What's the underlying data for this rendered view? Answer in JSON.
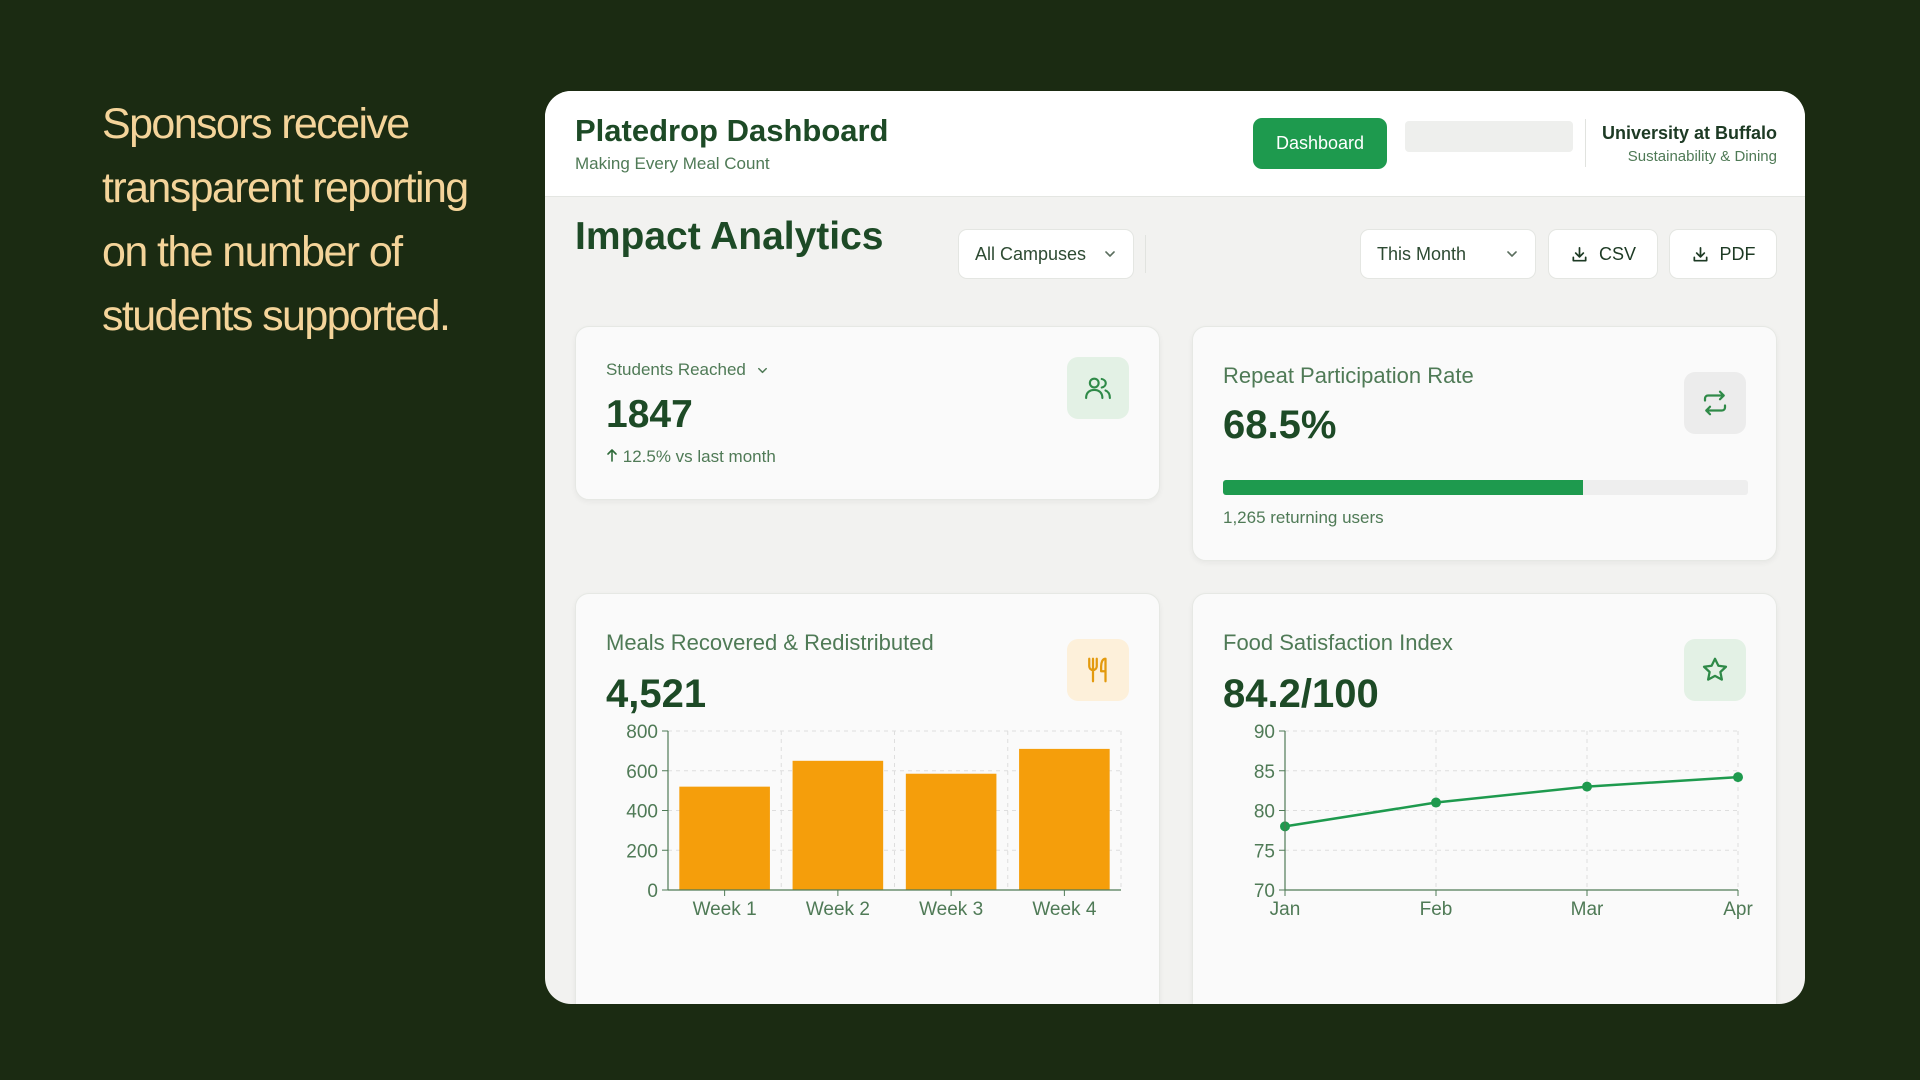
{
  "tagline": "Sponsors receive transparent reporting on the number of students supported.",
  "header": {
    "title": "Platedrop Dashboard",
    "subtitle": "Making Every Meal Count",
    "nav_button": "Dashboard",
    "org_name": "University at Buffalo",
    "org_sub": "Sustainability & Dining"
  },
  "page_title": "Impact Analytics",
  "filters": {
    "campus": "All Campuses",
    "period": "This Month",
    "csv": "CSV",
    "pdf": "PDF"
  },
  "students": {
    "label": "Students Reached",
    "value": "1847",
    "delta": "12.5% vs last month",
    "icon": "users-icon"
  },
  "repeat": {
    "label": "Repeat Participation Rate",
    "value": "68.5%",
    "progress": 0.685,
    "caption": "1,265 returning users",
    "icon": "repeat-icon"
  },
  "meals": {
    "label": "Meals Recovered & Redistributed",
    "value": "4,521",
    "icon": "utensils-icon"
  },
  "satisfaction": {
    "label": "Food Satisfaction Index",
    "value": "84.2/100",
    "icon": "star-icon"
  },
  "colors": {
    "background": "#1b2b12",
    "tagline": "#f4d49a",
    "primary_green": "#1e9a4e",
    "bar_orange": "#f59e0b",
    "title_green": "#1d4a26"
  },
  "chart_data": [
    {
      "type": "bar",
      "categories": [
        "Week 1",
        "Week 2",
        "Week 3",
        "Week 4"
      ],
      "values": [
        520,
        650,
        585,
        710
      ],
      "ylim": [
        0,
        800
      ],
      "yticks": [
        0,
        200,
        400,
        600,
        800
      ],
      "grid": true
    },
    {
      "type": "line",
      "categories": [
        "Jan",
        "Feb",
        "Mar",
        "Apr"
      ],
      "values": [
        78,
        81,
        83,
        84.2
      ],
      "ylim": [
        70,
        90
      ],
      "yticks": [
        70,
        75,
        80,
        85,
        90
      ],
      "grid": true
    }
  ]
}
